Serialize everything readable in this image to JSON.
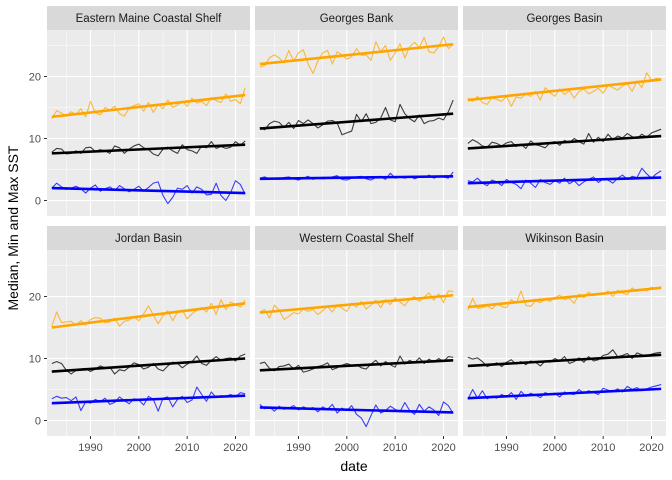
{
  "chart_data": {
    "type": "line",
    "facet_layout": "2x3",
    "xlabel": "date",
    "ylabel": "Median, Min and Max SST",
    "xlim": [
      1981,
      2023
    ],
    "ylim": [
      -2.5,
      27.5
    ],
    "x_ticks": [
      1990,
      2000,
      2010,
      2020
    ],
    "y_ticks": [
      0,
      10,
      20
    ],
    "grid": true,
    "legend": "none",
    "colors": {
      "max": "#FFA500",
      "median": "#000000",
      "min": "#0000FF",
      "panel_bg": "#EBEBEB",
      "strip_bg": "#D9D9D9",
      "grid": "#FFFFFF"
    },
    "series_keys": [
      "max",
      "median",
      "min"
    ],
    "x": [
      1982,
      1983,
      1984,
      1985,
      1986,
      1987,
      1988,
      1989,
      1990,
      1991,
      1992,
      1993,
      1994,
      1995,
      1996,
      1997,
      1998,
      1999,
      2000,
      2001,
      2002,
      2003,
      2004,
      2005,
      2006,
      2007,
      2008,
      2009,
      2010,
      2011,
      2012,
      2013,
      2014,
      2015,
      2016,
      2017,
      2018,
      2019,
      2020,
      2021,
      2022
    ],
    "panels": [
      {
        "label": "Eastern Maine Coastal Shelf",
        "series": [
          {
            "key": "max",
            "values": [
              13.2,
              14.5,
              14.1,
              13.6,
              14.3,
              13.9,
              14.8,
              13.5,
              16.0,
              14.2,
              13.8,
              15.0,
              14.6,
              15.2,
              14.0,
              13.6,
              14.9,
              15.3,
              15.6,
              14.4,
              15.8,
              14.2,
              15.5,
              14.8,
              16.2,
              15.0,
              15.4,
              16.0,
              15.2,
              16.5,
              15.7,
              16.0,
              15.3,
              16.6,
              16.1,
              15.8,
              17.2,
              16.0,
              16.3,
              15.6,
              18.2
            ],
            "trend": [
              13.5,
              17.0
            ]
          },
          {
            "key": "median",
            "values": [
              7.8,
              8.4,
              8.3,
              7.5,
              7.6,
              8.0,
              7.6,
              8.5,
              8.6,
              7.9,
              8.2,
              8.0,
              7.6,
              8.8,
              8.5,
              7.6,
              8.3,
              8.8,
              9.1,
              8.5,
              8.2,
              7.5,
              7.2,
              8.3,
              8.6,
              8.0,
              7.6,
              9.0,
              8.2,
              8.0,
              7.6,
              8.8,
              8.5,
              9.5,
              8.4,
              8.7,
              8.4,
              8.6,
              9.5,
              8.9,
              9.6
            ],
            "trend": [
              7.6,
              9.0
            ]
          },
          {
            "key": "min",
            "values": [
              2.0,
              2.8,
              2.2,
              1.8,
              2.0,
              2.3,
              1.9,
              1.2,
              2.0,
              2.5,
              1.5,
              1.9,
              2.2,
              1.6,
              2.4,
              1.9,
              1.4,
              1.8,
              2.3,
              1.5,
              2.1,
              2.8,
              3.0,
              0.8,
              -0.5,
              0.5,
              2.0,
              1.8,
              2.4,
              1.2,
              2.2,
              1.8,
              0.9,
              1.0,
              2.8,
              0.8,
              0.0,
              1.3,
              3.2,
              2.6,
              1.0
            ],
            "trend": [
              2.0,
              1.2
            ]
          }
        ]
      },
      {
        "label": "Georges Bank",
        "series": [
          {
            "key": "max",
            "values": [
              21.5,
              21.8,
              23.0,
              23.5,
              23.0,
              22.2,
              24.2,
              22.5,
              23.8,
              24.3,
              22.0,
              20.5,
              22.5,
              23.8,
              24.2,
              22.0,
              24.0,
              23.5,
              22.8,
              23.2,
              24.5,
              23.4,
              23.5,
              22.6,
              25.6,
              24.0,
              25.0,
              22.6,
              23.8,
              25.3,
              23.0,
              24.8,
              25.5,
              24.7,
              26.3,
              24.0,
              23.8,
              24.8,
              26.4,
              24.5,
              25.2
            ],
            "trend": [
              22.0,
              25.2
            ]
          },
          {
            "key": "median",
            "values": [
              11.8,
              11.4,
              12.4,
              12.8,
              12.6,
              11.8,
              12.6,
              11.6,
              12.9,
              12.4,
              13.0,
              12.4,
              11.7,
              12.2,
              12.8,
              12.9,
              12.5,
              10.6,
              10.9,
              11.2,
              13.9,
              12.7,
              14.0,
              12.4,
              12.6,
              13.3,
              15.0,
              13.0,
              12.7,
              15.5,
              14.0,
              13.2,
              12.7,
              13.8,
              12.4,
              12.8,
              12.9,
              13.3,
              13.0,
              14.3,
              16.2
            ],
            "trend": [
              11.6,
              14.0
            ]
          },
          {
            "key": "min",
            "values": [
              3.6,
              3.8,
              3.5,
              3.6,
              3.4,
              3.7,
              3.8,
              3.5,
              3.3,
              3.6,
              3.9,
              3.4,
              3.7,
              3.5,
              3.6,
              3.8,
              4.0,
              3.4,
              3.3,
              3.6,
              3.8,
              3.9,
              3.5,
              3.3,
              3.7,
              3.8,
              3.4,
              4.4,
              3.6,
              3.8,
              3.6,
              3.9,
              3.5,
              3.8,
              3.7,
              4.1,
              3.6,
              3.9,
              3.8,
              3.6,
              4.6
            ],
            "trend": [
              3.5,
              3.9
            ]
          }
        ]
      },
      {
        "label": "Georges Basin",
        "series": [
          {
            "key": "max",
            "values": [
              16.5,
              16.0,
              16.8,
              15.8,
              15.5,
              16.6,
              16.3,
              16.0,
              16.8,
              15.2,
              16.7,
              16.5,
              17.2,
              16.8,
              17.6,
              16.2,
              18.2,
              17.4,
              16.8,
              18.0,
              17.1,
              17.7,
              16.5,
              17.6,
              18.0,
              17.2,
              17.6,
              18.1,
              17.3,
              18.6,
              18.2,
              17.8,
              18.5,
              18.8,
              17.6,
              19.3,
              18.2,
              20.6,
              19.4,
              19.7,
              19.6
            ],
            "trend": [
              16.2,
              19.5
            ]
          },
          {
            "key": "median",
            "values": [
              9.2,
              9.8,
              9.4,
              8.8,
              8.6,
              9.4,
              9.2,
              8.8,
              9.3,
              9.5,
              8.7,
              9.1,
              8.4,
              9.6,
              9.0,
              8.8,
              8.5,
              9.3,
              9.5,
              8.9,
              9.7,
              9.3,
              10.0,
              9.5,
              9.1,
              10.8,
              9.4,
              10.2,
              9.5,
              10.7,
              9.8,
              10.4,
              10.1,
              10.8,
              10.3,
              10.0,
              10.7,
              10.2,
              10.9,
              11.2,
              11.5
            ],
            "trend": [
              8.4,
              10.4
            ]
          },
          {
            "key": "min",
            "values": [
              3.2,
              3.0,
              3.6,
              2.8,
              2.4,
              3.3,
              3.0,
              2.4,
              3.4,
              2.9,
              2.6,
              1.9,
              3.3,
              2.8,
              2.1,
              3.4,
              2.9,
              2.6,
              3.2,
              2.8,
              3.6,
              2.7,
              3.2,
              2.4,
              3.0,
              3.4,
              3.8,
              2.9,
              3.5,
              3.3,
              2.8,
              3.6,
              4.1,
              3.4,
              3.9,
              3.7,
              5.2,
              4.3,
              3.6,
              4.3,
              4.8
            ],
            "trend": [
              2.8,
              3.7
            ]
          }
        ]
      },
      {
        "label": "Jordan Basin",
        "series": [
          {
            "key": "max",
            "values": [
              15.2,
              17.5,
              15.8,
              15.9,
              16.0,
              15.4,
              16.1,
              15.4,
              16.3,
              16.6,
              16.5,
              15.8,
              15.9,
              16.5,
              15.2,
              16.0,
              16.2,
              16.7,
              16.1,
              17.2,
              18.5,
              17.0,
              15.6,
              16.9,
              17.7,
              16.1,
              17.5,
              17.8,
              16.4,
              17.2,
              17.8,
              18.2,
              17.5,
              18.9,
              17.1,
              19.5,
              17.9,
              19.1,
              18.7,
              18.3,
              19.4
            ],
            "trend": [
              15.0,
              18.9
            ]
          },
          {
            "key": "median",
            "values": [
              9.2,
              9.5,
              9.2,
              8.1,
              7.5,
              8.1,
              8.3,
              8.4,
              7.9,
              8.3,
              8.8,
              8.5,
              8.6,
              7.5,
              8.2,
              8.0,
              8.6,
              9.3,
              9.0,
              8.3,
              8.6,
              9.2,
              8.3,
              8.0,
              8.8,
              9.4,
              9.2,
              8.5,
              9.1,
              9.5,
              10.4,
              9.2,
              8.9,
              9.7,
              10.3,
              9.7,
              10.0,
              10.1,
              9.6,
              10.4,
              10.7
            ],
            "trend": [
              7.9,
              10.0
            ]
          },
          {
            "key": "min",
            "values": [
              3.5,
              3.9,
              3.6,
              3.7,
              3.2,
              3.8,
              1.6,
              3.0,
              2.8,
              3.4,
              3.0,
              3.6,
              2.6,
              2.9,
              3.8,
              3.2,
              2.7,
              3.5,
              3.3,
              2.5,
              3.9,
              3.4,
              1.5,
              3.6,
              3.8,
              2.2,
              3.4,
              3.9,
              2.9,
              3.3,
              5.4,
              4.2,
              3.1,
              4.6,
              3.7,
              4.0,
              3.9,
              4.2,
              3.8,
              4.5,
              4.3
            ],
            "trend": [
              2.8,
              4.0
            ]
          }
        ]
      },
      {
        "label": "Western Coastal Shelf",
        "series": [
          {
            "key": "max",
            "values": [
              17.5,
              17.9,
              16.5,
              18.6,
              17.8,
              16.3,
              16.8,
              17.4,
              17.2,
              18.0,
              17.6,
              17.9,
              17.1,
              17.7,
              18.4,
              17.5,
              18.7,
              18.1,
              17.6,
              18.9,
              18.3,
              19.2,
              18.0,
              18.6,
              19.4,
              18.2,
              19.5,
              18.7,
              19.8,
              19.1,
              18.5,
              19.6,
              20.0,
              19.2,
              19.9,
              20.6,
              19.4,
              20.4,
              19.0,
              20.9,
              20.8
            ],
            "trend": [
              17.4,
              20.2
            ]
          },
          {
            "key": "median",
            "values": [
              9.2,
              9.4,
              8.4,
              8.0,
              8.7,
              8.8,
              9.1,
              8.3,
              8.9,
              7.8,
              8.0,
              8.3,
              8.7,
              8.9,
              9.3,
              8.2,
              8.5,
              8.9,
              9.2,
              8.9,
              9.0,
              8.5,
              8.3,
              9.1,
              9.7,
              8.8,
              9.5,
              9.0,
              8.6,
              10.4,
              9.1,
              9.7,
              9.3,
              10.1,
              9.2,
              9.9,
              9.4,
              10.0,
              9.5,
              10.3,
              10.2
            ],
            "trend": [
              8.1,
              9.7
            ]
          },
          {
            "key": "min",
            "values": [
              2.6,
              1.9,
              2.2,
              1.5,
              2.3,
              1.8,
              2.0,
              2.4,
              1.7,
              2.2,
              1.9,
              2.1,
              1.4,
              2.2,
              1.8,
              2.6,
              1.2,
              2.0,
              1.6,
              2.4,
              1.0,
              0.4,
              -1.0,
              0.8,
              2.5,
              1.2,
              1.6,
              2.3,
              1.8,
              1.4,
              2.9,
              1.6,
              1.0,
              2.6,
              1.5,
              2.2,
              1.7,
              0.8,
              3.0,
              2.4,
              1.1
            ],
            "trend": [
              2.1,
              1.3
            ]
          }
        ]
      },
      {
        "label": "Wikinson Basin",
        "series": [
          {
            "key": "max",
            "values": [
              17.8,
              19.7,
              18.1,
              18.2,
              18.5,
              18.0,
              18.8,
              18.4,
              18.2,
              19.5,
              18.9,
              20.9,
              18.6,
              18.4,
              19.3,
              19.0,
              19.6,
              19.2,
              19.8,
              20.2,
              19.5,
              19.7,
              18.9,
              20.4,
              19.8,
              20.7,
              20.1,
              20.5,
              20.3,
              20.9,
              20.0,
              21.0,
              20.6,
              20.3,
              21.4,
              20.8,
              21.2,
              20.9,
              21.5,
              21.2,
              21.6
            ],
            "trend": [
              18.3,
              21.4
            ]
          },
          {
            "key": "median",
            "values": [
              10.2,
              9.9,
              10.1,
              9.5,
              8.7,
              9.0,
              9.3,
              8.7,
              9.4,
              9.8,
              9.1,
              9.5,
              9.0,
              9.6,
              9.4,
              8.8,
              9.6,
              9.4,
              10.0,
              9.6,
              10.3,
              9.2,
              9.5,
              10.1,
              9.4,
              10.3,
              9.6,
              9.8,
              10.5,
              10.7,
              11.4,
              10.3,
              10.5,
              10.8,
              10.0,
              10.9,
              10.6,
              10.4,
              10.7,
              10.9,
              11.0
            ],
            "trend": [
              8.8,
              10.6
            ]
          },
          {
            "key": "min",
            "values": [
              3.4,
              5.0,
              3.6,
              4.8,
              3.5,
              3.9,
              3.6,
              4.2,
              3.8,
              4.5,
              3.4,
              4.7,
              3.9,
              4.4,
              4.1,
              3.7,
              4.5,
              4.2,
              4.4,
              3.8,
              4.6,
              4.3,
              4.2,
              5.0,
              4.4,
              4.8,
              4.5,
              4.2,
              5.2,
              4.9,
              4.7,
              5.1,
              4.6,
              5.5,
              5.0,
              5.3,
              4.8,
              5.1,
              5.4,
              5.6,
              5.8
            ],
            "trend": [
              3.6,
              5.1
            ]
          }
        ]
      }
    ]
  }
}
